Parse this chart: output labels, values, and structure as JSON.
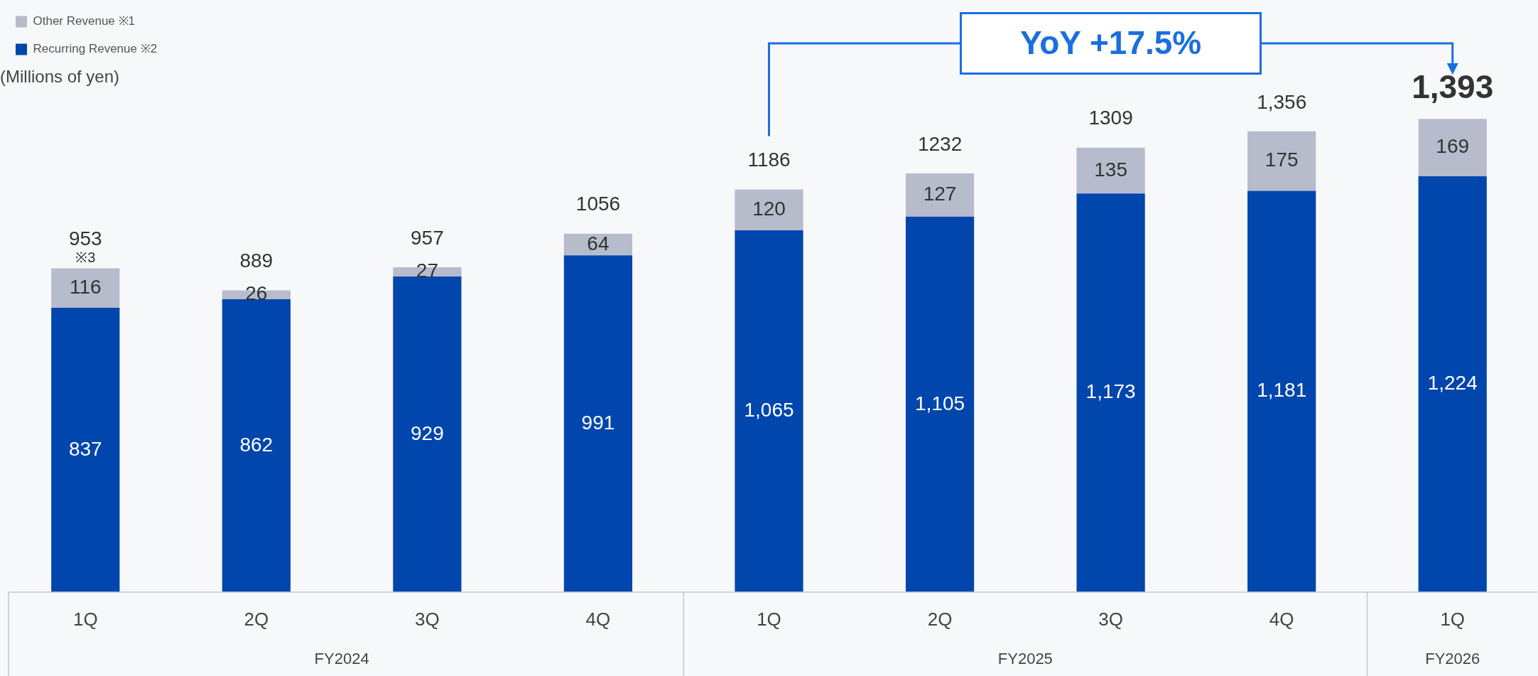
{
  "chart_data": {
    "type": "bar",
    "stacked": true,
    "ylabel": "(Millions of yen)",
    "categories": [
      "1Q",
      "2Q",
      "3Q",
      "4Q",
      "1Q",
      "2Q",
      "3Q",
      "4Q",
      "1Q"
    ],
    "series": [
      {
        "name": "Recurring Revenue ※2",
        "color": "#0046ad",
        "values": [
          837,
          862,
          929,
          991,
          1065,
          1105,
          1173,
          1181,
          1224
        ],
        "value_labels": [
          "837",
          "862",
          "929",
          "991",
          "1,065",
          "1,105",
          "1,173",
          "1,181",
          "1,224"
        ]
      },
      {
        "name": "Other Revenue ※1",
        "color": "#b7bccc",
        "values": [
          116,
          26,
          27,
          64,
          120,
          127,
          135,
          175,
          169
        ]
      }
    ],
    "data_labels": true,
    "totals": [
      "953",
      "889",
      "957",
      "1056",
      "1186",
      "1232",
      "1309",
      "1,356",
      "1,393"
    ],
    "legend": "top left",
    "grid": false,
    "annotations": [
      "FY2024",
      "FY2025",
      "FY2026",
      "YoY +17.5%",
      {
        "text": "※3",
        "x": "1Q",
        "y": 953
      }
    ]
  }
}
